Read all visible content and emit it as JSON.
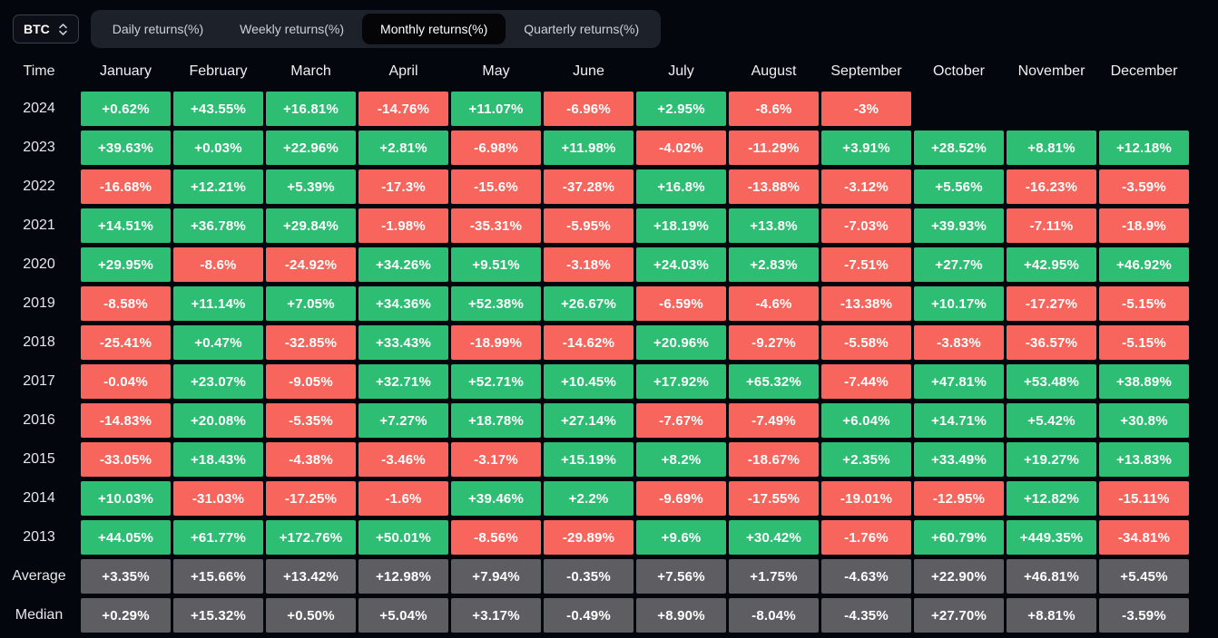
{
  "controls": {
    "symbol": "BTC",
    "tabs": [
      {
        "label": "Daily returns(%)",
        "active": false
      },
      {
        "label": "Weekly returns(%)",
        "active": false
      },
      {
        "label": "Monthly returns(%)",
        "active": true
      },
      {
        "label": "Quarterly returns(%)",
        "active": false
      }
    ]
  },
  "table": {
    "time_header": "Time",
    "months": [
      "January",
      "February",
      "March",
      "April",
      "May",
      "June",
      "July",
      "August",
      "September",
      "October",
      "November",
      "December"
    ],
    "rows": [
      {
        "label": "2024",
        "kind": "year",
        "values": [
          "+0.62%",
          "+43.55%",
          "+16.81%",
          "-14.76%",
          "+11.07%",
          "-6.96%",
          "+2.95%",
          "-8.6%",
          "-3%",
          "",
          "",
          ""
        ]
      },
      {
        "label": "2023",
        "kind": "year",
        "values": [
          "+39.63%",
          "+0.03%",
          "+22.96%",
          "+2.81%",
          "-6.98%",
          "+11.98%",
          "-4.02%",
          "-11.29%",
          "+3.91%",
          "+28.52%",
          "+8.81%",
          "+12.18%"
        ]
      },
      {
        "label": "2022",
        "kind": "year",
        "values": [
          "-16.68%",
          "+12.21%",
          "+5.39%",
          "-17.3%",
          "-15.6%",
          "-37.28%",
          "+16.8%",
          "-13.88%",
          "-3.12%",
          "+5.56%",
          "-16.23%",
          "-3.59%"
        ]
      },
      {
        "label": "2021",
        "kind": "year",
        "values": [
          "+14.51%",
          "+36.78%",
          "+29.84%",
          "-1.98%",
          "-35.31%",
          "-5.95%",
          "+18.19%",
          "+13.8%",
          "-7.03%",
          "+39.93%",
          "-7.11%",
          "-18.9%"
        ]
      },
      {
        "label": "2020",
        "kind": "year",
        "values": [
          "+29.95%",
          "-8.6%",
          "-24.92%",
          "+34.26%",
          "+9.51%",
          "-3.18%",
          "+24.03%",
          "+2.83%",
          "-7.51%",
          "+27.7%",
          "+42.95%",
          "+46.92%"
        ]
      },
      {
        "label": "2019",
        "kind": "year",
        "values": [
          "-8.58%",
          "+11.14%",
          "+7.05%",
          "+34.36%",
          "+52.38%",
          "+26.67%",
          "-6.59%",
          "-4.6%",
          "-13.38%",
          "+10.17%",
          "-17.27%",
          "-5.15%"
        ]
      },
      {
        "label": "2018",
        "kind": "year",
        "values": [
          "-25.41%",
          "+0.47%",
          "-32.85%",
          "+33.43%",
          "-18.99%",
          "-14.62%",
          "+20.96%",
          "-9.27%",
          "-5.58%",
          "-3.83%",
          "-36.57%",
          "-5.15%"
        ]
      },
      {
        "label": "2017",
        "kind": "year",
        "values": [
          "-0.04%",
          "+23.07%",
          "-9.05%",
          "+32.71%",
          "+52.71%",
          "+10.45%",
          "+17.92%",
          "+65.32%",
          "-7.44%",
          "+47.81%",
          "+53.48%",
          "+38.89%"
        ]
      },
      {
        "label": "2016",
        "kind": "year",
        "values": [
          "-14.83%",
          "+20.08%",
          "-5.35%",
          "+7.27%",
          "+18.78%",
          "+27.14%",
          "-7.67%",
          "-7.49%",
          "+6.04%",
          "+14.71%",
          "+5.42%",
          "+30.8%"
        ]
      },
      {
        "label": "2015",
        "kind": "year",
        "values": [
          "-33.05%",
          "+18.43%",
          "-4.38%",
          "-3.46%",
          "-3.17%",
          "+15.19%",
          "+8.2%",
          "-18.67%",
          "+2.35%",
          "+33.49%",
          "+19.27%",
          "+13.83%"
        ]
      },
      {
        "label": "2014",
        "kind": "year",
        "values": [
          "+10.03%",
          "-31.03%",
          "-17.25%",
          "-1.6%",
          "+39.46%",
          "+2.2%",
          "-9.69%",
          "-17.55%",
          "-19.01%",
          "-12.95%",
          "+12.82%",
          "-15.11%"
        ]
      },
      {
        "label": "2013",
        "kind": "year",
        "values": [
          "+44.05%",
          "+61.77%",
          "+172.76%",
          "+50.01%",
          "-8.56%",
          "-29.89%",
          "+9.6%",
          "+30.42%",
          "-1.76%",
          "+60.79%",
          "+449.35%",
          "-34.81%"
        ]
      },
      {
        "label": "Average",
        "kind": "summary",
        "values": [
          "+3.35%",
          "+15.66%",
          "+13.42%",
          "+12.98%",
          "+7.94%",
          "-0.35%",
          "+7.56%",
          "+1.75%",
          "-4.63%",
          "+22.90%",
          "+46.81%",
          "+5.45%"
        ]
      },
      {
        "label": "Median",
        "kind": "summary",
        "values": [
          "+0.29%",
          "+15.32%",
          "+0.50%",
          "+5.04%",
          "+3.17%",
          "-0.49%",
          "+8.90%",
          "-8.04%",
          "-4.35%",
          "+27.70%",
          "+8.81%",
          "-3.59%"
        ]
      }
    ]
  },
  "colors": {
    "positive_cell": "#2dbe73",
    "negative_cell": "#f7655c",
    "summary_cell": "#5e5e62",
    "background": "#04060d",
    "tab_bar": "#1d212a",
    "active_tab": "#050508"
  }
}
